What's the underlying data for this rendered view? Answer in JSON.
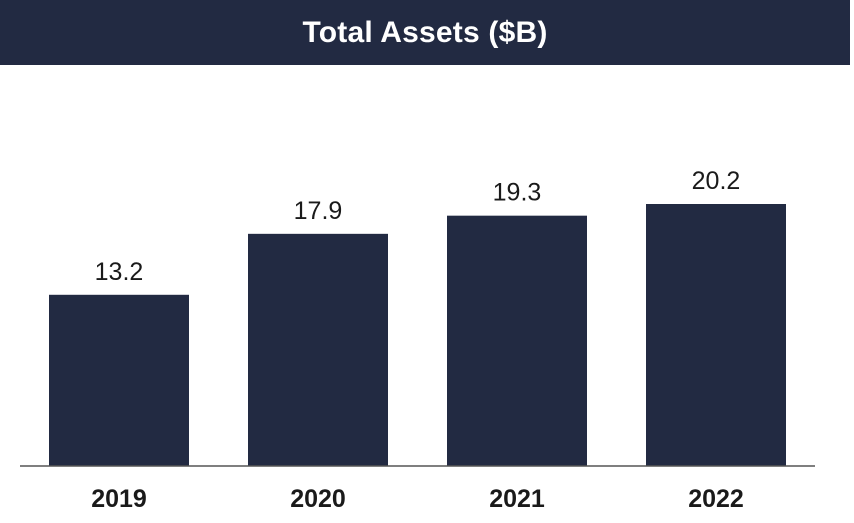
{
  "chart_data": {
    "type": "bar",
    "title": "Total Assets ($B)",
    "categories": [
      "2019",
      "2020",
      "2021",
      "2022"
    ],
    "values": [
      13.2,
      17.9,
      19.3,
      20.2
    ],
    "data_labels": [
      "13.2",
      "17.9",
      "19.3",
      "20.2"
    ],
    "xlabel": "",
    "ylabel": "",
    "ylim": [
      0,
      20.2
    ],
    "grid": false,
    "legend": "none",
    "colors": {
      "bar": "#222a42",
      "title_background": "#222a42",
      "title_text": "#ffffff",
      "axis": "#555555",
      "label_text": "#1a1a1a"
    }
  }
}
